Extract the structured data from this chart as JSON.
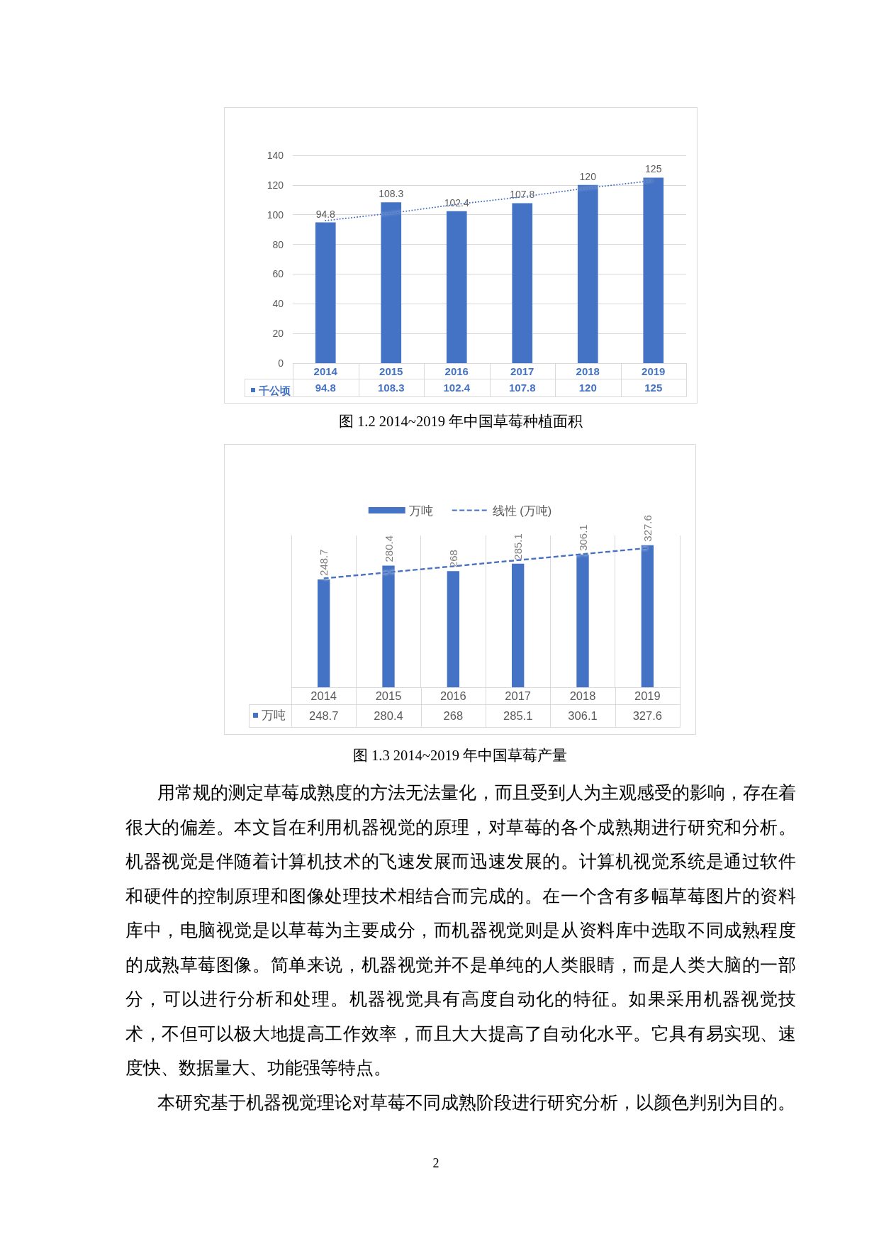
{
  "chart_data": [
    {
      "type": "bar",
      "annotations": [
        "图 1.2 2014~2019 年中国草莓种植面积"
      ],
      "categories": [
        "2014",
        "2015",
        "2016",
        "2017",
        "2018",
        "2019"
      ],
      "series": [
        {
          "name": "千公顷",
          "color": "#4472c4",
          "values": [
            94.8,
            108.3,
            102.4,
            107.8,
            120,
            125
          ],
          "value_labels": [
            "94.8",
            "108.3",
            "102.4",
            "107.8",
            "120",
            "125"
          ]
        },
        {
          "type": "line",
          "color": "#4472c4",
          "line_style": "dotted",
          "values": [
            96,
            101,
            107,
            112,
            118,
            123
          ]
        }
      ],
      "ylim": [
        0,
        140
      ],
      "yticks": [
        0,
        20,
        40,
        60,
        80,
        100,
        120,
        140
      ],
      "grid": "y"
    },
    {
      "type": "bar",
      "annotations": [
        "图 1.3 2014~2019 年中国草莓产量"
      ],
      "categories": [
        "2014",
        "2015",
        "2016",
        "2017",
        "2018",
        "2019"
      ],
      "series": [
        {
          "name": "万吨",
          "color": "#4472c4",
          "values": [
            248.7,
            280.4,
            268,
            285.1,
            306.1,
            327.6
          ],
          "value_labels": [
            "248.7",
            "280.4",
            "268",
            "285.1",
            "306.1",
            "327.6"
          ]
        },
        {
          "name": "线性 (万吨)",
          "type": "line",
          "color": "#4472c4",
          "line_style": "dashed",
          "values": [
            251,
            265,
            279,
            293,
            307,
            321
          ]
        }
      ],
      "tick_labels": "x",
      "grid": "x",
      "legend": "top"
    },
    {
      "type": "other",
      "annotations": [
        "用常规的测定草莓成熟度的方法无法量化，而且受到人为主观感受的影响，存在着很大的偏差。本文旨在利用机器视觉的原理，对草莓的各个成熟期进行研究和分析。机器视觉是伴随着计算机技术的飞速发展而迅速发展的。计算机视觉系统是通过软件和硬件的控制原理和图像处理技术相结合而完成的。在一个含有多幅草莓图片的资料库中，电脑视觉是以草莓为主要成分，而机器视觉则是从资料库中选取不同成熟程度的成熟草莓图像。简单来说，机器视觉并不是单纯的人类眼睛，而是人类大脑的一部分，可以进行分析和处理。机器视觉具有高度自动化的特征。如果采用机器视觉技术，不但可以极大地提高工作效率，而且大大提高了自动化水平。它具有易实现、速度快、数据量大、功能强等特点。",
        "本研究基于机器视觉理论对草莓不同成熟阶段进行研究分析，以颜色判别为目的。",
        "2"
      ]
    }
  ]
}
